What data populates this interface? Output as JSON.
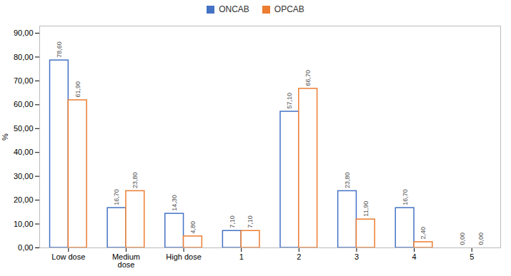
{
  "chart_data": {
    "type": "bar",
    "categories": [
      "Low dose",
      "Medium\ndose",
      "High dose",
      "1",
      "2",
      "3",
      "4",
      "5"
    ],
    "series": [
      {
        "name": "ONCAB",
        "color": "#4472C4",
        "values": [
          78.6,
          16.7,
          14.3,
          7.1,
          57.1,
          23.8,
          16.7,
          0.0
        ],
        "value_labels": [
          "78,60",
          "16,70",
          "14,30",
          "7,10",
          "57,10",
          "23,80",
          "16,70",
          "0,00"
        ]
      },
      {
        "name": "OPCAB",
        "color": "#ED7D31",
        "values": [
          61.9,
          23.8,
          4.8,
          7.1,
          66.7,
          11.9,
          2.4,
          0.0
        ],
        "value_labels": [
          "61,90",
          "23,80",
          "4,80",
          "7,10",
          "66,70",
          "11,90",
          "2,40",
          "0,00"
        ]
      }
    ],
    "y_label": "%",
    "ylim": [
      0,
      93
    ],
    "yticks": [
      {
        "value": 0,
        "label": "0,00"
      },
      {
        "value": 10,
        "label": "10,00"
      },
      {
        "value": 20,
        "label": "20,00"
      },
      {
        "value": 30,
        "label": "30,00"
      },
      {
        "value": 40,
        "label": "40,00"
      },
      {
        "value": 50,
        "label": "50,00"
      },
      {
        "value": 60,
        "label": "60,00"
      },
      {
        "value": 70,
        "label": "70,00"
      },
      {
        "value": 80,
        "label": "80,00"
      },
      {
        "value": 90,
        "label": "90,00"
      }
    ],
    "grid": false,
    "legend": "top",
    "data_labels": true
  }
}
